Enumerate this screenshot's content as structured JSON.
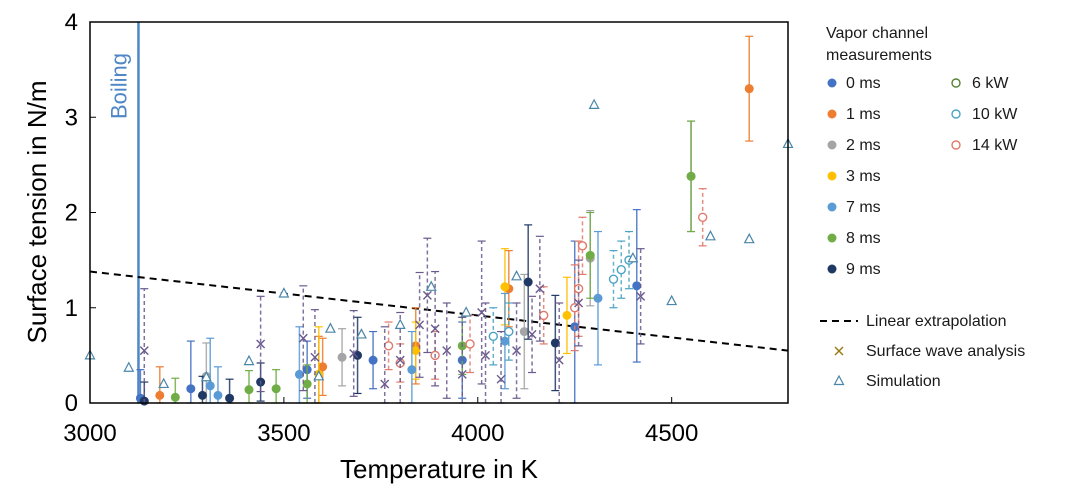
{
  "chart_data": {
    "type": "scatter",
    "xlabel": "Temperature in K",
    "ylabel": "Surface tension in N/m",
    "xlim": [
      3000,
      4800
    ],
    "ylim": [
      0,
      4
    ],
    "xticks": [
      "3000",
      "3500",
      "4000",
      "4500"
    ],
    "yticks": [
      "0",
      "1",
      "2",
      "3",
      "4"
    ],
    "grid": false,
    "legend_position": "right",
    "legend_title": "Vapor channel measurements",
    "annotation": {
      "text": "Boiling",
      "x": 3125,
      "color": "#4f86c6"
    },
    "linear_extrapolation": {
      "name": "Linear extrapolation",
      "points": [
        [
          3000,
          1.38
        ],
        [
          4800,
          0.55
        ]
      ],
      "color": "#000000"
    },
    "series": [
      {
        "name": "0 ms",
        "color": "#4472c4",
        "marker": "filled",
        "points": [
          [
            3130,
            0.05,
            0.3
          ],
          [
            3260,
            0.15,
            0.5
          ],
          [
            3560,
            0.35,
            0.3
          ],
          [
            3730,
            0.45,
            0.3
          ],
          [
            3960,
            0.45,
            0.4
          ],
          [
            4250,
            0.8,
            0.9
          ],
          [
            4410,
            1.23,
            0.8
          ]
        ]
      },
      {
        "name": "1 ms",
        "color": "#ed7d31",
        "marker": "filled",
        "points": [
          [
            3180,
            0.08,
            0.3
          ],
          [
            3590,
            0.3,
            0.4
          ],
          [
            3600,
            0.38,
            0.3
          ],
          [
            3840,
            0.6,
            0.4
          ],
          [
            4080,
            1.2,
            0.4
          ],
          [
            4700,
            3.3,
            0.55
          ]
        ]
      },
      {
        "name": "2 ms",
        "color": "#a5a5a5",
        "marker": "filled",
        "points": [
          [
            3300,
            0.28,
            0.35
          ],
          [
            3650,
            0.48,
            0.3
          ],
          [
            4120,
            0.75,
            0.6
          ],
          [
            4290,
            1.52,
            0.5
          ],
          [
            4550,
            2.38,
            0.58
          ]
        ]
      },
      {
        "name": "3 ms",
        "color": "#ffc000",
        "marker": "filled",
        "points": [
          [
            3590,
            0.3,
            0.5
          ],
          [
            3840,
            0.55,
            0.3
          ],
          [
            4070,
            1.22,
            0.4
          ],
          [
            4230,
            0.92,
            0.4
          ]
        ]
      },
      {
        "name": "7 ms",
        "color": "#5b9bd5",
        "marker": "filled",
        "points": [
          [
            3310,
            0.18,
            0.5
          ],
          [
            3330,
            0.08,
            0.3
          ],
          [
            3540,
            0.3,
            0.5
          ],
          [
            3830,
            0.35,
            0.4
          ],
          [
            4070,
            0.65,
            0.5
          ],
          [
            4310,
            1.1,
            0.7
          ]
        ]
      },
      {
        "name": "8 ms",
        "color": "#70ad47",
        "marker": "filled",
        "points": [
          [
            3220,
            0.06,
            0.2
          ],
          [
            3410,
            0.14,
            0.2
          ],
          [
            3480,
            0.15,
            0.2
          ],
          [
            3560,
            0.2,
            0.2
          ],
          [
            3960,
            0.6,
            0.3
          ],
          [
            4290,
            1.55,
            0.45
          ],
          [
            4550,
            2.38,
            0.58
          ]
        ]
      },
      {
        "name": "9 ms",
        "color": "#203864",
        "marker": "filled",
        "points": [
          [
            3140,
            0.02,
            0.2
          ],
          [
            3290,
            0.08,
            0.2
          ],
          [
            3360,
            0.05,
            0.2
          ],
          [
            3440,
            0.22,
            0.2
          ],
          [
            3690,
            0.5,
            0.4
          ],
          [
            4130,
            1.27,
            0.6
          ],
          [
            4200,
            0.63,
            0.5
          ]
        ]
      },
      {
        "name": "6 kW",
        "color": "#548235",
        "marker": "open",
        "points": []
      },
      {
        "name": "10 kW",
        "color": "#4ba3c3",
        "marker": "open",
        "points": [
          [
            4040,
            0.7,
            0.3
          ],
          [
            4080,
            0.75,
            0.3
          ],
          [
            4350,
            1.3,
            0.3
          ],
          [
            4370,
            1.4,
            0.3
          ],
          [
            4390,
            1.5,
            0.3
          ]
        ]
      },
      {
        "name": "14 kW",
        "color": "#e07a6a",
        "marker": "open",
        "points": [
          [
            3770,
            0.6,
            0.25
          ],
          [
            3800,
            0.42,
            0.2
          ],
          [
            3890,
            0.5,
            0.25
          ],
          [
            3980,
            0.62,
            0.3
          ],
          [
            4170,
            0.92,
            0.3
          ],
          [
            4250,
            1.0,
            0.45
          ],
          [
            4260,
            1.2,
            0.5
          ],
          [
            4270,
            1.65,
            0.3
          ],
          [
            4580,
            1.95,
            0.3
          ]
        ]
      },
      {
        "name": "Surface wave analysis",
        "color": "#6a5a8e",
        "marker": "x",
        "points": [
          [
            3140,
            0.55,
            0.65
          ],
          [
            3440,
            0.62,
            0.5
          ],
          [
            3550,
            0.68,
            0.55
          ],
          [
            3580,
            0.48,
            0.5
          ],
          [
            3680,
            0.52,
            0.45
          ],
          [
            3760,
            0.2,
            0.6
          ],
          [
            3800,
            0.45,
            0.5
          ],
          [
            3850,
            0.82,
            0.55
          ],
          [
            3870,
            1.13,
            0.6
          ],
          [
            3890,
            0.78,
            0.6
          ],
          [
            3920,
            0.55,
            0.5
          ],
          [
            3960,
            0.3,
            0.6
          ],
          [
            4010,
            0.95,
            0.75
          ],
          [
            4020,
            0.5,
            0.55
          ],
          [
            4060,
            0.25,
            0.5
          ],
          [
            4100,
            0.55,
            0.5
          ],
          [
            4140,
            0.72,
            0.4
          ],
          [
            4160,
            1.2,
            0.55
          ],
          [
            4210,
            0.45,
            0.6
          ],
          [
            4260,
            1.05,
            0.45
          ],
          [
            4420,
            1.12,
            0.5
          ]
        ]
      },
      {
        "name": "Simulation",
        "color": "#4a86a8",
        "marker": "triangle",
        "points": [
          [
            3000,
            0.5
          ],
          [
            3100,
            0.37
          ],
          [
            3190,
            0.2
          ],
          [
            3300,
            0.27
          ],
          [
            3410,
            0.44
          ],
          [
            3500,
            1.15
          ],
          [
            3590,
            0.28
          ],
          [
            3620,
            0.78
          ],
          [
            3700,
            0.72
          ],
          [
            3800,
            0.82
          ],
          [
            3880,
            1.22
          ],
          [
            3970,
            0.95
          ],
          [
            4100,
            1.33
          ],
          [
            4300,
            3.13
          ],
          [
            4400,
            1.52
          ],
          [
            4500,
            1.07
          ],
          [
            4600,
            1.75
          ],
          [
            4700,
            1.72
          ],
          [
            4800,
            2.72
          ]
        ]
      }
    ]
  }
}
